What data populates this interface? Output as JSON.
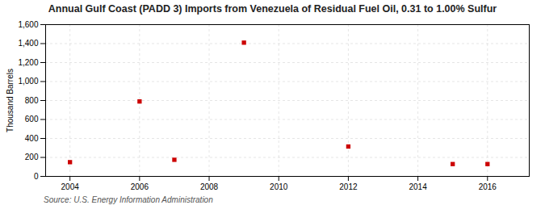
{
  "chart_data": {
    "type": "scatter",
    "title": "Annual Gulf Coast (PADD 3) Imports from Venezuela of Residual Fuel Oil, 0.31 to 1.00% Sulfur",
    "ylabel": "Thousand Barrels",
    "annotations": [
      "Source: U.S. Energy Information Administration"
    ],
    "x": [
      2004,
      2006,
      2007,
      2009,
      2012,
      2015,
      2016
    ],
    "values": [
      150,
      790,
      175,
      1410,
      315,
      130,
      130
    ],
    "color": "#cc0000",
    "marker": "square",
    "xlim": [
      2003.3,
      2017.2
    ],
    "xticks": [
      2004,
      2006,
      2008,
      2010,
      2012,
      2014,
      2016
    ],
    "ylim": [
      0,
      1600
    ],
    "yticks": [
      0,
      200,
      400,
      600,
      800,
      {
        "value": 1000,
        "label": "1,000"
      },
      {
        "value": 1200,
        "label": "1,200"
      },
      {
        "value": 1400,
        "label": "1,400"
      },
      {
        "value": 1600,
        "label": "1,600"
      }
    ],
    "grid": true
  }
}
